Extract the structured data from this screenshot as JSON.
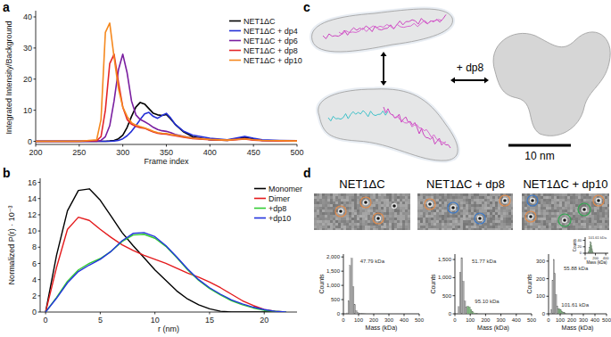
{
  "chart_data": [
    {
      "type": "line",
      "x_label": "Frame index",
      "y_label": "Integrated Intensity/Background",
      "x": [
        200,
        250,
        270,
        275,
        280,
        285,
        290,
        295,
        300,
        305,
        310,
        315,
        320,
        325,
        330,
        335,
        340,
        345,
        350,
        355,
        360,
        370,
        380,
        400,
        420,
        440,
        450,
        460,
        480,
        500
      ],
      "series": [
        {
          "name": "NET1ΔC",
          "color": "#000000",
          "values": [
            0,
            0,
            0,
            0,
            0,
            0.1,
            0.3,
            0.8,
            2,
            4.5,
            8,
            11,
            12.5,
            12,
            10.5,
            9,
            8.5,
            8.3,
            8.6,
            7.2,
            5.5,
            3,
            1.5,
            0.5,
            0.3,
            1.3,
            0.8,
            0.3,
            0.2,
            0.1
          ]
        },
        {
          "name": "NET1ΔC + dp4",
          "color": "#2430d6",
          "values": [
            0,
            0,
            0,
            0,
            0,
            0,
            0.1,
            0.3,
            0.8,
            1.8,
            3.2,
            5,
            7,
            8.8,
            9.3,
            8,
            7.4,
            8.3,
            9,
            7.5,
            5.5,
            3.2,
            2,
            1,
            0.5,
            1.6,
            1,
            0.5,
            0.3,
            0.2
          ]
        },
        {
          "name": "NET1ΔC + dp6",
          "color": "#7a1fa0",
          "values": [
            0,
            0,
            0,
            0.3,
            1.5,
            5,
            13,
            23,
            28,
            22,
            13,
            8.5,
            7,
            6.3,
            5.5,
            4.5,
            3.8,
            3.4,
            3.2,
            2.8,
            2.2,
            1.6,
            1.1,
            0.6,
            0.4,
            0.9,
            0.5,
            0.3,
            0.2,
            0.1
          ]
        },
        {
          "name": "NET1ΔC + dp8",
          "color": "#e3262a",
          "values": [
            0,
            0,
            0.2,
            1.5,
            10,
            25,
            28,
            19,
            11,
            7,
            5.5,
            4.8,
            4.4,
            4.2,
            3.6,
            3,
            2.6,
            2.4,
            2.3,
            2,
            1.8,
            1.3,
            0.9,
            0.5,
            0.3,
            0.7,
            0.4,
            0.2,
            0.1,
            0.1
          ]
        },
        {
          "name": "NET1ΔC + dp10",
          "color": "#f5891f",
          "values": [
            0,
            0,
            0.5,
            7,
            35,
            38,
            27,
            17,
            11,
            8,
            6,
            5.2,
            4.7,
            4.3,
            3.8,
            3.2,
            2.8,
            2.6,
            2.5,
            2.2,
            2,
            1.5,
            1,
            0.6,
            0.4,
            0.8,
            0.5,
            0.3,
            0.2,
            0.1
          ]
        }
      ],
      "xlim": [
        200,
        500
      ],
      "ylim": [
        -1,
        42
      ],
      "xticks": [
        200,
        250,
        300,
        350,
        400,
        450,
        500
      ],
      "yticks": [
        0,
        10,
        20,
        30,
        40
      ],
      "legend": "upper right"
    },
    {
      "type": "line",
      "x_label": "r (nm)",
      "y_label": "Normalized P(r) · 10⁻³",
      "x": [
        0,
        1,
        2,
        3,
        4,
        5,
        6,
        7,
        8,
        9,
        10,
        11,
        12,
        13,
        14,
        15,
        16,
        17,
        18,
        19,
        20,
        21,
        22
      ],
      "series": [
        {
          "name": "Monomer",
          "color": "#000000",
          "values": [
            0,
            7,
            12.5,
            15,
            15.2,
            13.8,
            11.8,
            9.8,
            8.2,
            6.7,
            5.2,
            3.9,
            2.6,
            1.6,
            0.9,
            0.4,
            0.1,
            0,
            0,
            0,
            0,
            0,
            0
          ]
        },
        {
          "name": "Dimer",
          "color": "#e41a1c",
          "values": [
            0,
            5.5,
            10.2,
            11.7,
            11.3,
            10.2,
            9.2,
            8.3,
            7.6,
            7,
            6.5,
            6,
            5.4,
            4.8,
            4.3,
            3.7,
            3,
            2.2,
            1.4,
            0.8,
            0.3,
            0.1,
            0
          ]
        },
        {
          "name": "+dp8",
          "color": "#33cc33",
          "values": [
            0,
            1.8,
            3.8,
            5.2,
            6,
            6.6,
            7.5,
            8.7,
            9.5,
            9.6,
            9.1,
            8.1,
            6.7,
            5.2,
            3.9,
            2.9,
            2.1,
            1.4,
            0.9,
            0.5,
            0.2,
            0.1,
            0
          ]
        },
        {
          "name": "+dp10",
          "color": "#2233dd",
          "values": [
            0,
            1.7,
            3.6,
            5,
            5.8,
            6.5,
            7.5,
            8.8,
            9.7,
            9.8,
            9.3,
            8.2,
            6.8,
            5.3,
            4,
            3,
            2.2,
            1.5,
            1,
            0.6,
            0.3,
            0.1,
            0
          ]
        }
      ],
      "xlim": [
        -0.5,
        23
      ],
      "ylim": [
        0,
        16.5
      ],
      "xticks": [
        0,
        5,
        10,
        15,
        20
      ],
      "yticks": [
        0,
        2,
        4,
        6,
        8,
        10,
        12,
        14,
        16
      ],
      "legend": "upper right"
    },
    {
      "type": "histogram",
      "title": "NET1ΔC",
      "x_label": "Mass (kDa)",
      "y_label": "Counts",
      "bins": [
        0,
        10,
        20,
        30,
        40,
        50,
        60,
        70,
        80,
        90,
        100,
        110,
        120,
        130,
        140,
        150
      ],
      "counts": [
        0,
        0,
        30,
        450,
        1700,
        1950,
        950,
        320,
        110,
        40,
        20,
        10,
        5,
        3,
        2
      ],
      "color": "#a9a9a9",
      "xlim": [
        0,
        500
      ],
      "ylim": [
        0,
        2100
      ],
      "xticks": [
        0,
        100,
        200,
        300,
        400,
        500
      ],
      "yticks": [
        0,
        500,
        {
          "value": 1000,
          "label": "1,000"
        },
        {
          "value": 1500,
          "label": "1,500"
        },
        {
          "value": 2000,
          "label": "2,000"
        }
      ],
      "annotations": [
        {
          "text": "47.79 kDa",
          "x": 110,
          "y": 1800
        }
      ]
    },
    {
      "type": "histogram",
      "title": "NET1ΔC + dp8",
      "x_label": "Mass (kDa)",
      "y_label": "Counts",
      "bins": [
        0,
        10,
        20,
        30,
        40,
        50,
        60,
        70,
        80,
        90,
        100,
        110,
        120,
        130,
        140,
        150
      ],
      "counts": [
        0,
        0,
        200,
        1150,
        1550,
        900,
        350,
        180,
        210,
        190,
        120,
        60,
        25,
        10,
        5
      ],
      "colors": [
        "#a9a9a9",
        "#a9a9a9",
        "#a9a9a9",
        "#a9a9a9",
        "#a9a9a9",
        "#a9a9a9",
        "#a9a9a9",
        "#a9a9a9",
        "#7cc27a",
        "#7cc27a",
        "#7cc27a",
        "#7cc27a",
        "#7cc27a",
        "#7cc27a",
        "#7cc27a"
      ],
      "xlim": [
        0,
        500
      ],
      "ylim": [
        0,
        1650
      ],
      "xticks": [
        0,
        100,
        200,
        300,
        400,
        500
      ],
      "yticks": [
        0,
        500,
        {
          "value": 1000,
          "label": "1,000"
        },
        {
          "value": 1500,
          "label": "1,500"
        }
      ],
      "annotations": [
        {
          "text": "51.77 kDa",
          "x": 110,
          "y": 1400
        },
        {
          "text": "95.10 kDa",
          "x": 130,
          "y": 300
        }
      ]
    },
    {
      "type": "histogram",
      "title": "NET1ΔC + dp10",
      "x_label": "Mass (kDa)",
      "y_label": "Counts",
      "bins": [
        0,
        10,
        20,
        30,
        40,
        50,
        60,
        70,
        80,
        90,
        100,
        110,
        120,
        130,
        140,
        150
      ],
      "counts": [
        0,
        0,
        25,
        190,
        310,
        230,
        110,
        45,
        30,
        28,
        22,
        15,
        10,
        6,
        4
      ],
      "colors": [
        "#a9a9a9",
        "#a9a9a9",
        "#a9a9a9",
        "#a9a9a9",
        "#a9a9a9",
        "#a9a9a9",
        "#a9a9a9",
        "#a9a9a9",
        "#7cc27a",
        "#7cc27a",
        "#7cc27a",
        "#7cc27a",
        "#7cc27a",
        "#7cc27a",
        "#7cc27a"
      ],
      "xlim": [
        0,
        500
      ],
      "ylim": [
        0,
        340
      ],
      "xticks": [
        0,
        100,
        200,
        300,
        400,
        500
      ],
      "yticks": [
        0,
        100,
        200,
        300
      ],
      "annotations": [
        {
          "text": "55.88 kDa",
          "x": 130,
          "y": 250
        },
        {
          "text": "101.61 kDa",
          "x": 110,
          "y": 40
        }
      ]
    },
    {
      "type": "histogram",
      "x_label": "Mass (kDa)",
      "y_label": "Counts",
      "bins": [
        60,
        70,
        80,
        90,
        100,
        110,
        120,
        130,
        140,
        150,
        160
      ],
      "counts": [
        4,
        9,
        18,
        28,
        36,
        33,
        24,
        14,
        7,
        3
      ],
      "color": "#7cc27a",
      "xlim": [
        0,
        450
      ],
      "ylim": [
        0,
        50
      ],
      "xticks": [
        0,
        200,
        400
      ],
      "yticks": [
        0,
        20,
        40
      ],
      "annotations": [
        {
          "text": "101.61 kDa",
          "x": 60,
          "y": 44
        }
      ]
    }
  ],
  "figure": {
    "panel_labels": [
      "a",
      "b",
      "c",
      "d"
    ],
    "panel_c": {
      "annotation": "+ dp8",
      "scale_bar": "10 nm"
    }
  }
}
